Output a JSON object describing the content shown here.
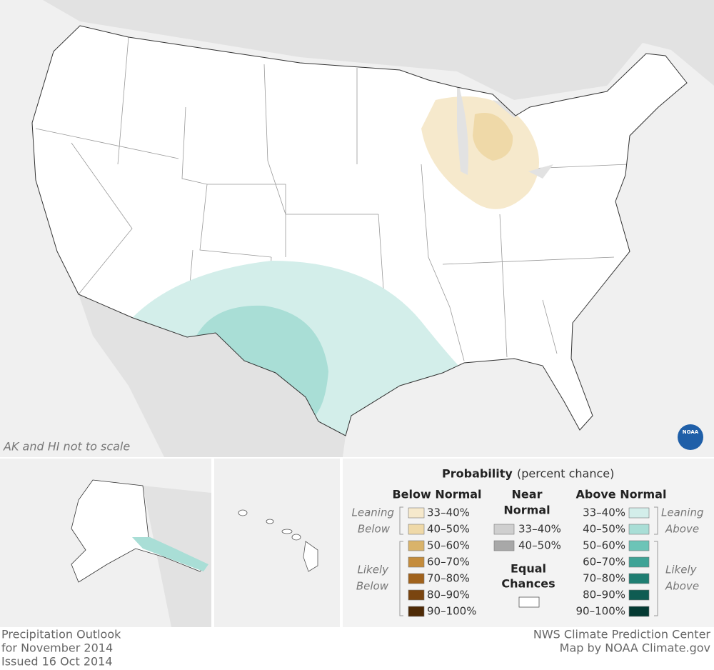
{
  "note": "AK and HI not to scale",
  "logo": "NOAA",
  "legend": {
    "title": "Probability",
    "subtitle": "(percent chance)",
    "below_normal": {
      "heading": "Below Normal",
      "leaning": [
        "Leaning",
        "Below"
      ],
      "likely": [
        "Likely",
        "Below"
      ],
      "items": [
        {
          "label": "33–40%",
          "color": "#f6e9cc"
        },
        {
          "label": "40–50%",
          "color": "#efd9a8"
        },
        {
          "label": "50–60%",
          "color": "#d9b36a"
        },
        {
          "label": "60–70%",
          "color": "#c48c3c"
        },
        {
          "label": "70–80%",
          "color": "#a0621c"
        },
        {
          "label": "80–90%",
          "color": "#7a4510"
        },
        {
          "label": "90–100%",
          "color": "#4e2a06"
        }
      ]
    },
    "near_normal": {
      "heading": [
        "Near",
        "Normal"
      ],
      "items": [
        {
          "label": "33–40%",
          "color": "#cfcfcf"
        },
        {
          "label": "40–50%",
          "color": "#a8a8a8"
        }
      ]
    },
    "equal_chances": {
      "label": [
        "Equal",
        "Chances"
      ],
      "color": "#ffffff"
    },
    "above_normal": {
      "heading": "Above Normal",
      "leaning": [
        "Leaning",
        "Above"
      ],
      "likely": [
        "Likely",
        "Above"
      ],
      "items": [
        {
          "label": "33–40%",
          "color": "#d3eeea"
        },
        {
          "label": "40–50%",
          "color": "#a9ded6"
        },
        {
          "label": "50–60%",
          "color": "#6cc4b7"
        },
        {
          "label": "60–70%",
          "color": "#3fa396"
        },
        {
          "label": "70–80%",
          "color": "#1f7e72"
        },
        {
          "label": "80–90%",
          "color": "#0f5c52"
        },
        {
          "label": "90–100%",
          "color": "#053a33"
        }
      ]
    }
  },
  "footer": {
    "left": [
      "Precipitation Outlook",
      "for November 2014",
      "Issued 16 Oct 2014"
    ],
    "right": [
      "NWS Climate Prediction Center",
      "Map by NOAA Climate.gov"
    ]
  }
}
